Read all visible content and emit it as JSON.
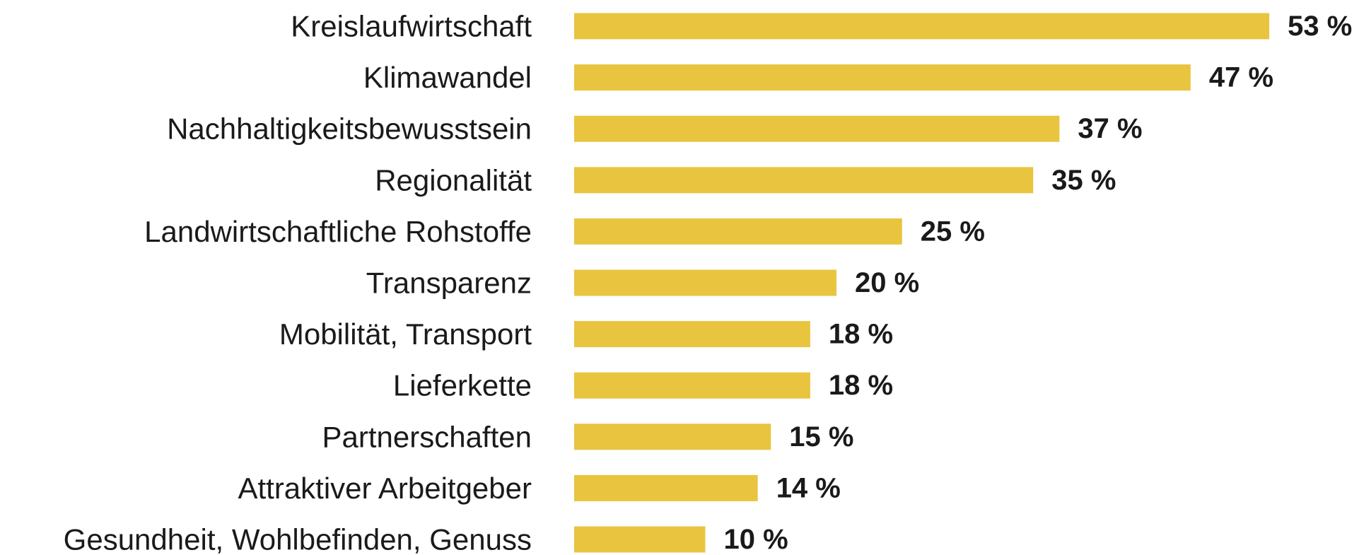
{
  "chart_data": {
    "type": "bar",
    "orientation": "horizontal",
    "categories": [
      "Kreislaufwirtschaft",
      "Klimawandel",
      "Nachhaltigkeitsbewusstsein",
      "Regionalität",
      "Landwirtschaftliche Rohstoffe",
      "Transparenz",
      "Mobilität, Transport",
      "Lieferkette",
      "Partnerschaften",
      "Attraktiver Arbeitgeber",
      "Gesundheit, Wohlbefinden, Genuss"
    ],
    "values": [
      53,
      47,
      37,
      35,
      25,
      20,
      18,
      18,
      15,
      14,
      10
    ],
    "value_labels": [
      "53 %",
      "47 %",
      "37 %",
      "35 %",
      "25 %",
      "20 %",
      "18 %",
      "18 %",
      "15 %",
      "14 %",
      "10 %"
    ],
    "color": "#e9c43f"
  }
}
